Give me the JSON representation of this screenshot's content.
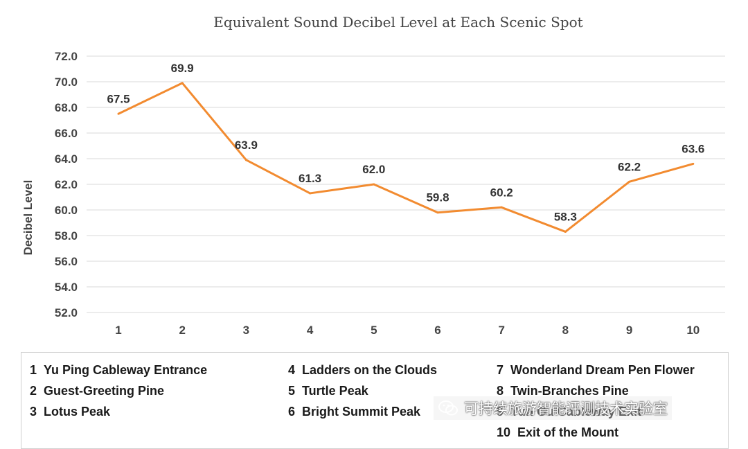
{
  "chart_data": {
    "type": "line",
    "title": "Equivalent Sound Decibel Level at Each Scenic Spot",
    "ylabel": "Decibel Level",
    "xlabel": "",
    "categories": [
      "1",
      "2",
      "3",
      "4",
      "5",
      "6",
      "7",
      "8",
      "9",
      "10"
    ],
    "values": [
      67.5,
      69.9,
      63.9,
      61.3,
      62.0,
      59.8,
      60.2,
      58.3,
      62.2,
      63.6
    ],
    "value_labels": [
      "67.5",
      "69.9",
      "63.9",
      "61.3",
      "62.0",
      "59.8",
      "60.2",
      "58.3",
      "62.2",
      "63.6"
    ],
    "ylim": [
      52.0,
      72.0
    ],
    "yticks": [
      "52.0",
      "54.0",
      "56.0",
      "58.0",
      "60.0",
      "62.0",
      "64.0",
      "66.0",
      "68.0",
      "70.0",
      "72.0"
    ],
    "grid": true,
    "line_color": "#F28B30",
    "legend": [
      {
        "num": "1",
        "label": "Yu Ping Cableway Entrance"
      },
      {
        "num": "2",
        "label": "Guest-Greeting Pine"
      },
      {
        "num": "3",
        "label": "Lotus Peak"
      },
      {
        "num": "4",
        "label": "Ladders on the Clouds"
      },
      {
        "num": "5",
        "label": "Turtle Peak"
      },
      {
        "num": "6",
        "label": "Bright Summit Peak"
      },
      {
        "num": "7",
        "label": "Wonderland Dream Pen Flower"
      },
      {
        "num": "8",
        "label": "Twin-Branches Pine"
      },
      {
        "num": "9",
        "label": "Yun Gu Cableway Exit"
      },
      {
        "num": "10",
        "label": "Exit of the Mount"
      }
    ]
  },
  "watermark": {
    "text": "可持续旅游智能评测技术实验室",
    "icon": "wechat-icon"
  }
}
